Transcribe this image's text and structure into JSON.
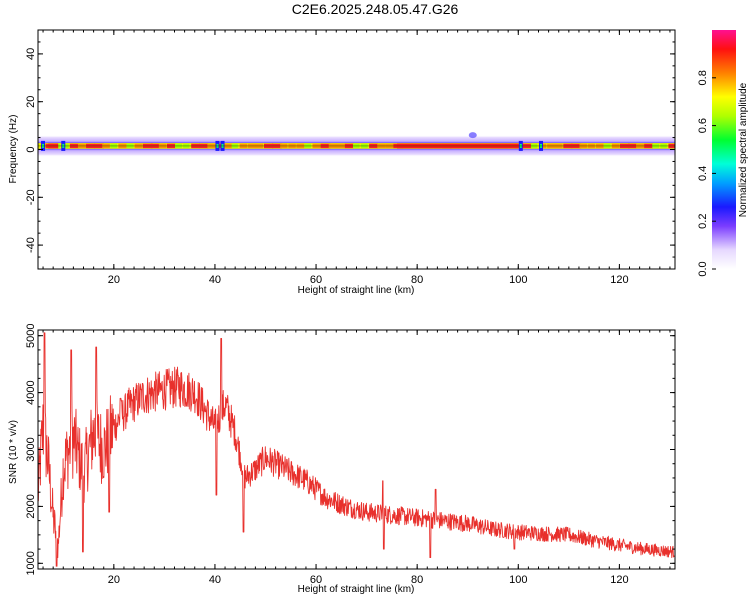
{
  "title": "C2E6.2025.248.05.47.G26",
  "chart_data": [
    {
      "type": "heatmap",
      "xlabel": "Height of straight line (km)",
      "ylabel": "Frequency (Hz)",
      "xlim": [
        5,
        131
      ],
      "ylim": [
        -50,
        50
      ],
      "xticks": [
        20,
        40,
        60,
        80,
        100,
        120
      ],
      "yticks": [
        -40,
        -20,
        0,
        20,
        40
      ],
      "colorbar": {
        "label": "Normalized spectral amplitude",
        "range": [
          0.0,
          1.0
        ],
        "ticks": [
          "0.0",
          "0.2",
          "0.4",
          "0.6",
          "0.8"
        ]
      },
      "band": {
        "center_hz": 1.5,
        "core_halfwidth_hz": 1.2,
        "halo_halfwidth_hz": 4.5,
        "low_amplitude_heights_km": [
          6,
          10,
          40.5,
          41.5,
          100.5,
          104.5
        ],
        "high_amplitude_segments_km": [
          [
            7,
            9
          ],
          [
            76,
            100
          ]
        ],
        "upper_bump_heights_km": [
          91
        ]
      }
    },
    {
      "type": "line",
      "xlabel": "Height of straight line (km)",
      "ylabel": "SNR (10 * v/v)",
      "xlim": [
        5,
        131
      ],
      "ylim": [
        900,
        5100
      ],
      "xticks": [
        20,
        40,
        60,
        80,
        100,
        120
      ],
      "yticks": [
        1000,
        2000,
        3000,
        4000,
        5000
      ],
      "color": "#e8302c",
      "series": [
        {
          "trend": {
            "x": [
              5,
              6,
              7,
              8,
              9,
              10,
              12,
              14,
              16,
              18,
              20,
              23,
              26,
              30,
              33,
              36,
              38,
              40,
              42,
              44,
              46,
              48,
              50,
              54,
              58,
              62,
              66,
              70,
              75,
              80,
              85,
              90,
              95,
              100,
              105,
              110,
              115,
              120,
              125,
              131
            ],
            "y": [
              2200,
              3400,
              2800,
              1800,
              1300,
              2700,
              3200,
              2600,
              3300,
              3000,
              3400,
              3750,
              3950,
              4050,
              4100,
              4000,
              3700,
              3400,
              3800,
              3300,
              2500,
              2650,
              2850,
              2650,
              2450,
              2150,
              2000,
              1900,
              1850,
              1800,
              1750,
              1700,
              1600,
              1550,
              1520,
              1500,
              1400,
              1320,
              1250,
              1200
            ]
          },
          "spikes": [
            {
              "x": 6.3,
              "y": 5050
            },
            {
              "x": 8.7,
              "y": 950
            },
            {
              "x": 11.6,
              "y": 4750
            },
            {
              "x": 13.9,
              "y": 1200
            },
            {
              "x": 16.5,
              "y": 4800
            },
            {
              "x": 19.1,
              "y": 1900
            },
            {
              "x": 21.3,
              "y": 3900
            },
            {
              "x": 41.2,
              "y": 4950
            },
            {
              "x": 40.3,
              "y": 2200
            },
            {
              "x": 45.6,
              "y": 1550
            },
            {
              "x": 73.2,
              "y": 2450
            },
            {
              "x": 73.4,
              "y": 1250
            },
            {
              "x": 82.6,
              "y": 1100
            },
            {
              "x": 83.6,
              "y": 2300
            },
            {
              "x": 99.2,
              "y": 1250
            }
          ]
        }
      ]
    }
  ]
}
